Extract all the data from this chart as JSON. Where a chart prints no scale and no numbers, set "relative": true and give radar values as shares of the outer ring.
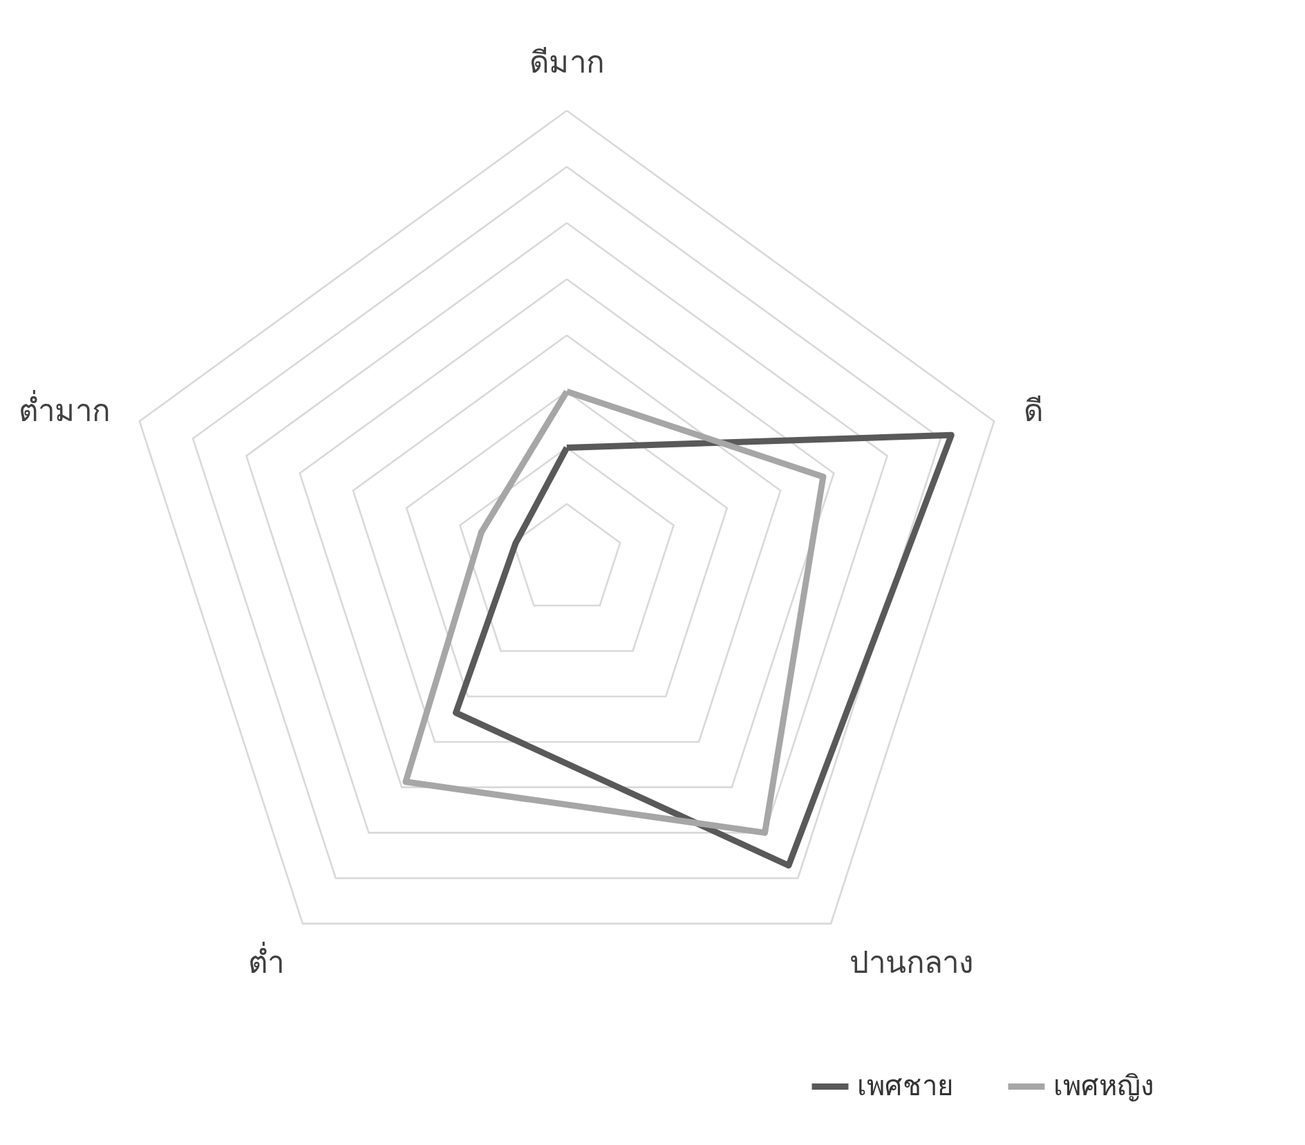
{
  "chart_data": {
    "type": "radar",
    "relative": true,
    "categories": [
      "ดีมาก",
      "ดี",
      "ปานกลาง",
      "ต่ำ",
      "ต่ำมาก"
    ],
    "series": [
      {
        "name": "เพศชาย",
        "color": "#595959",
        "values": [
          0.25,
          0.9,
          0.84,
          0.42,
          0.12
        ]
      },
      {
        "name": "เพศหญิง",
        "color": "#a6a6a6",
        "values": [
          0.375,
          0.6,
          0.75,
          0.61,
          0.2
        ]
      }
    ],
    "grid": true,
    "legend": "bottom right",
    "marker": "none",
    "line_style": "solid"
  }
}
